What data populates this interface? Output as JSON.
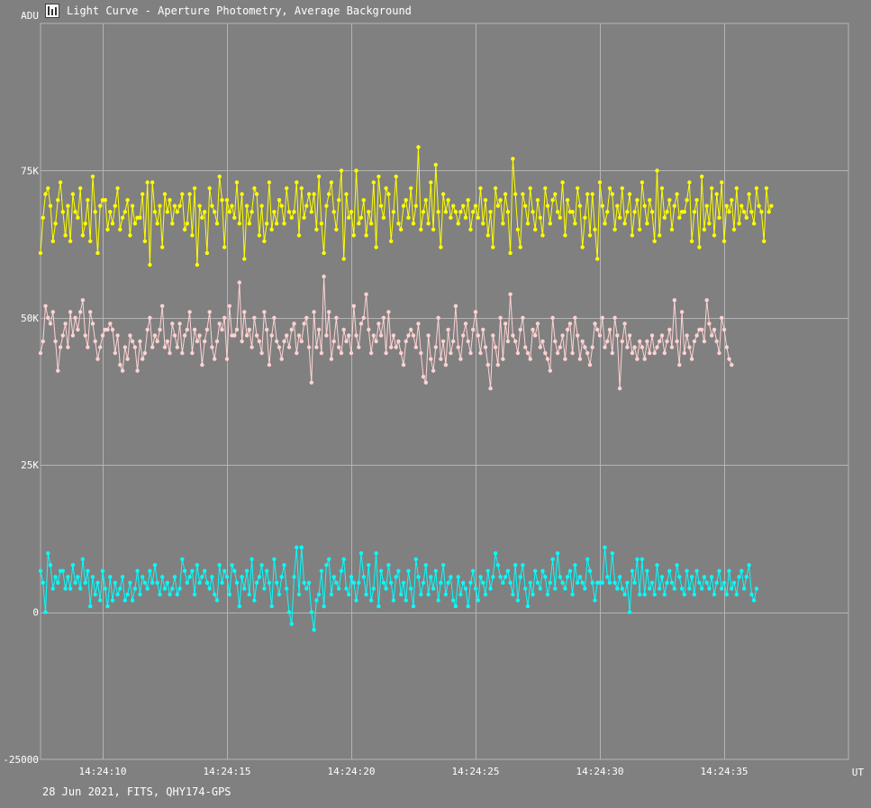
{
  "window": {
    "title": "Light Curve - Aperture Photometry, Average Background",
    "footer": "28 Jun 2021, FITS, QHY174-GPS"
  },
  "colors": {
    "background": "#808080",
    "grid": "#b4b4b4",
    "text": "#ffffff"
  },
  "icons": {
    "app": "chart-icon"
  },
  "chart_data": {
    "type": "line",
    "title": "Light Curve - Aperture Photometry, Average Background",
    "xlabel": "UT",
    "ylabel": "ADU",
    "x_unit": "seconds after 14:24:00 UT",
    "xlim": [
      7.5,
      40.0
    ],
    "ylim": [
      -25000,
      100000
    ],
    "grid": true,
    "x_ticks": [
      10,
      15,
      20,
      25,
      30,
      35
    ],
    "x_tick_labels": [
      "14:24:10",
      "14:24:15",
      "14:24:20",
      "14:24:25",
      "14:24:30",
      "14:24:35"
    ],
    "y_ticks": [
      -25000,
      0,
      25000,
      50000,
      75000
    ],
    "y_tick_labels": [
      "-25000",
      "0",
      "25K",
      "50K",
      "75K"
    ],
    "series": [
      {
        "color": "#ffff00",
        "x_start": 7.5,
        "x_step": 0.1,
        "values": [
          61000,
          67000,
          71000,
          72000,
          69000,
          63000,
          66000,
          70000,
          73000,
          68000,
          64000,
          69000,
          63000,
          71000,
          68000,
          67000,
          72000,
          64000,
          66000,
          70000,
          63000,
          74000,
          68000,
          61000,
          69000,
          70000,
          70000,
          65000,
          68000,
          66000,
          69000,
          72000,
          65000,
          67000,
          68000,
          70000,
          64000,
          69000,
          66000,
          67000,
          67000,
          71000,
          63000,
          73000,
          59000,
          73000,
          68000,
          66000,
          69000,
          62000,
          71000,
          68000,
          70000,
          66000,
          69000,
          68000,
          69000,
          71000,
          65000,
          66000,
          71000,
          64000,
          72000,
          59000,
          69000,
          67000,
          68000,
          61000,
          72000,
          69000,
          68000,
          66000,
          74000,
          70000,
          62000,
          70000,
          68000,
          69000,
          67000,
          73000,
          66000,
          71000,
          60000,
          69000,
          66000,
          68000,
          72000,
          71000,
          64000,
          69000,
          63000,
          66000,
          73000,
          65000,
          68000,
          66000,
          70000,
          69000,
          66000,
          72000,
          68000,
          67000,
          68000,
          73000,
          64000,
          72000,
          67000,
          69000,
          71000,
          68000,
          71000,
          65000,
          74000,
          66000,
          61000,
          69000,
          71000,
          73000,
          68000,
          65000,
          70000,
          75000,
          60000,
          71000,
          67000,
          68000,
          64000,
          75000,
          66000,
          67000,
          70000,
          64000,
          68000,
          66000,
          73000,
          62000,
          74000,
          69000,
          67000,
          72000,
          71000,
          63000,
          68000,
          74000,
          66000,
          65000,
          69000,
          70000,
          67000,
          72000,
          66000,
          69000,
          79000,
          65000,
          68000,
          70000,
          66000,
          73000,
          65000,
          76000,
          68000,
          62000,
          71000,
          68000,
          70000,
          67000,
          69000,
          68000,
          66000,
          68000,
          69000,
          67000,
          70000,
          65000,
          68000,
          69000,
          67000,
          72000,
          66000,
          70000,
          64000,
          68000,
          62000,
          72000,
          69000,
          70000,
          66000,
          71000,
          68000,
          61000,
          77000,
          71000,
          65000,
          62000,
          71000,
          69000,
          66000,
          72000,
          68000,
          65000,
          70000,
          67000,
          64000,
          72000,
          69000,
          66000,
          70000,
          71000,
          68000,
          67000,
          73000,
          64000,
          70000,
          68000,
          68000,
          66000,
          72000,
          69000,
          62000,
          67000,
          71000,
          64000,
          71000,
          65000,
          60000,
          73000,
          69000,
          66000,
          68000,
          72000,
          71000,
          65000,
          69000,
          67000,
          72000,
          66000,
          68000,
          71000,
          64000,
          68000,
          70000,
          65000,
          73000,
          69000,
          66000,
          70000,
          68000,
          63000,
          75000,
          64000,
          72000,
          67000,
          68000,
          70000,
          65000,
          69000,
          71000,
          67000,
          68000,
          68000,
          70000,
          73000,
          63000,
          68000,
          70000,
          62000,
          74000,
          65000,
          69000,
          66000,
          72000,
          64000,
          71000,
          67000,
          73000,
          63000,
          69000,
          68000,
          70000,
          65000,
          72000,
          66000,
          69000,
          68000,
          67000,
          71000,
          68000,
          66000,
          72000,
          69000,
          68000,
          63000,
          72000,
          68000,
          69000
        ]
      },
      {
        "color": "#ffd2d2",
        "x_start": 7.5,
        "x_step": 0.1,
        "values": [
          44000,
          46000,
          52000,
          50000,
          49000,
          51000,
          46000,
          41000,
          45000,
          47000,
          49000,
          45000,
          51000,
          47000,
          50000,
          48000,
          51000,
          53000,
          47000,
          45000,
          51000,
          49000,
          46000,
          43000,
          45000,
          47000,
          48000,
          48000,
          49000,
          48000,
          44000,
          47000,
          42000,
          41000,
          45000,
          43000,
          47000,
          46000,
          45000,
          41000,
          46000,
          43000,
          44000,
          48000,
          50000,
          45000,
          47000,
          46000,
          48000,
          52000,
          45000,
          46000,
          44000,
          49000,
          47000,
          45000,
          49000,
          44000,
          47000,
          48000,
          51000,
          44000,
          48000,
          46000,
          47000,
          42000,
          46000,
          48000,
          51000,
          45000,
          43000,
          46000,
          49000,
          48000,
          50000,
          43000,
          52000,
          47000,
          47000,
          48000,
          56000,
          46000,
          51000,
          47000,
          48000,
          45000,
          50000,
          47000,
          46000,
          44000,
          51000,
          48000,
          42000,
          47000,
          50000,
          46000,
          45000,
          43000,
          46000,
          47000,
          45000,
          48000,
          49000,
          44000,
          47000,
          46000,
          49000,
          50000,
          45000,
          39000,
          51000,
          45000,
          48000,
          44000,
          57000,
          47000,
          51000,
          43000,
          46000,
          50000,
          45000,
          44000,
          48000,
          46000,
          47000,
          44000,
          52000,
          47000,
          45000,
          49000,
          50000,
          54000,
          48000,
          44000,
          47000,
          46000,
          49000,
          47000,
          50000,
          44000,
          51000,
          45000,
          47000,
          45000,
          46000,
          44000,
          42000,
          46000,
          47000,
          48000,
          47000,
          45000,
          49000,
          44000,
          40000,
          39000,
          47000,
          43000,
          41000,
          45000,
          50000,
          43000,
          46000,
          42000,
          48000,
          44000,
          46000,
          52000,
          45000,
          43000,
          47000,
          49000,
          46000,
          44000,
          48000,
          51000,
          47000,
          44000,
          48000,
          45000,
          42000,
          38000,
          47000,
          45000,
          42000,
          50000,
          43000,
          49000,
          46000,
          54000,
          47000,
          46000,
          44000,
          48000,
          50000,
          45000,
          44000,
          43000,
          48000,
          47000,
          49000,
          45000,
          46000,
          44000,
          43000,
          41000,
          50000,
          46000,
          44000,
          45000,
          47000,
          43000,
          48000,
          49000,
          44000,
          50000,
          47000,
          43000,
          46000,
          45000,
          44000,
          42000,
          45000,
          49000,
          48000,
          47000,
          50000,
          45000,
          46000,
          48000,
          44000,
          50000,
          47000,
          38000,
          46000,
          49000,
          45000,
          47000,
          44000,
          45000,
          43000,
          46000,
          45000,
          43000,
          46000,
          44000,
          47000,
          44000,
          45000,
          46000,
          47000,
          44000,
          46000,
          48000,
          45000,
          53000,
          46000,
          42000,
          51000,
          44000,
          47000,
          45000,
          43000,
          46000,
          47000,
          48000,
          48000,
          46000,
          53000,
          49000,
          47000,
          48000,
          46000,
          44000,
          50000,
          48000,
          45000,
          43000,
          42000
        ]
      },
      {
        "color": "#00ffff",
        "x_start": 7.5,
        "x_step": 0.1,
        "values": [
          7000,
          5000,
          0,
          10000,
          8000,
          4000,
          6000,
          5000,
          7000,
          7000,
          4000,
          6000,
          4000,
          8000,
          5000,
          6000,
          4000,
          9000,
          5000,
          7000,
          1000,
          6000,
          3000,
          5000,
          2000,
          7000,
          4000,
          1000,
          6000,
          2000,
          5000,
          3000,
          4000,
          6000,
          2000,
          3000,
          5000,
          2000,
          4000,
          7000,
          3000,
          6000,
          5000,
          4000,
          7000,
          5000,
          8000,
          5000,
          3000,
          6000,
          4000,
          5000,
          3000,
          4000,
          6000,
          3000,
          4000,
          9000,
          7000,
          5000,
          6000,
          7000,
          3000,
          8000,
          5000,
          6000,
          7000,
          5000,
          4000,
          6000,
          3000,
          2000,
          8000,
          5000,
          7000,
          6000,
          3000,
          8000,
          7000,
          5000,
          1000,
          6000,
          4000,
          7000,
          3000,
          9000,
          2000,
          5000,
          6000,
          8000,
          4000,
          7000,
          5000,
          1000,
          9000,
          5000,
          3000,
          6000,
          8000,
          4000,
          0,
          -2000,
          6000,
          11000,
          3000,
          11000,
          5000,
          4000,
          5000,
          0,
          -3000,
          2000,
          3000,
          7000,
          1000,
          8000,
          9000,
          3000,
          6000,
          5000,
          4000,
          7000,
          9000,
          4000,
          3000,
          6000,
          5000,
          2000,
          5000,
          10000,
          6000,
          3000,
          8000,
          2000,
          4000,
          10000,
          1000,
          7000,
          5000,
          4000,
          8000,
          5000,
          2000,
          6000,
          7000,
          3000,
          5000,
          2000,
          7000,
          4000,
          1000,
          9000,
          6000,
          3000,
          5000,
          8000,
          3000,
          6000,
          4000,
          7000,
          2000,
          5000,
          8000,
          3000,
          5000,
          6000,
          2000,
          1000,
          6000,
          3000,
          5000,
          4000,
          1000,
          5000,
          7000,
          4000,
          2000,
          6000,
          5000,
          3000,
          7000,
          4000,
          6000,
          10000,
          8000,
          6000,
          5000,
          6000,
          7000,
          5000,
          3000,
          8000,
          2000,
          6000,
          8000,
          4000,
          1000,
          5000,
          3000,
          7000,
          5000,
          4000,
          7000,
          6000,
          3000,
          5000,
          9000,
          4000,
          10000,
          6000,
          5000,
          4000,
          6000,
          7000,
          3000,
          8000,
          5000,
          6000,
          5000,
          4000,
          9000,
          7000,
          5000,
          2000,
          5000,
          5000,
          5000,
          11000,
          6000,
          5000,
          10000,
          5000,
          4000,
          6000,
          4000,
          3000,
          5000,
          0,
          7000,
          5000,
          9000,
          3000,
          9000,
          3000,
          7000,
          4000,
          5000,
          3000,
          8000,
          4000,
          6000,
          3000,
          5000,
          7000,
          5000,
          4000,
          8000,
          6000,
          4000,
          3000,
          7000,
          4000,
          6000,
          3000,
          7000,
          5000,
          4000,
          6000,
          5000,
          4000,
          6000,
          3000,
          5000,
          7000,
          4000,
          5000,
          3000,
          7000,
          4000,
          5000,
          3000,
          6000,
          7000,
          4000,
          6000,
          8000,
          3000,
          2000,
          4000
        ]
      }
    ]
  }
}
